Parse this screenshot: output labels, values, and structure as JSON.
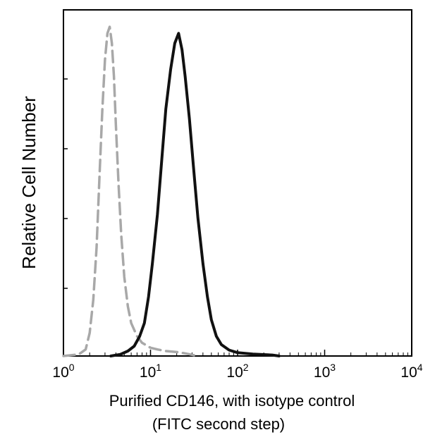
{
  "chart_data": {
    "type": "line",
    "title": "",
    "xlabel": "Purified CD146, with isotype control",
    "xlabel_line2": "(FITC second step)",
    "ylabel": "Relative Cell Number",
    "x_scale": "log",
    "xlim": [
      1,
      10000
    ],
    "ylim": [
      0,
      1
    ],
    "grid": false,
    "legend": "none",
    "x_tick_labels": [
      {
        "base": "10",
        "exp": "0",
        "value": 1
      },
      {
        "base": "10",
        "exp": "1",
        "value": 10
      },
      {
        "base": "10",
        "exp": "2",
        "value": 100
      },
      {
        "base": "10",
        "exp": "3",
        "value": 1000
      },
      {
        "base": "10",
        "exp": "4",
        "value": 10000
      }
    ],
    "y_ticks": [
      0,
      0.2,
      0.4,
      0.6,
      0.8,
      1.0
    ],
    "series": [
      {
        "color": "#a8a8a8",
        "style": "dashed",
        "x": [
          1.0,
          1.5,
          1.8,
          2.0,
          2.2,
          2.4,
          2.6,
          2.8,
          3.0,
          3.2,
          3.4,
          3.6,
          3.8,
          4.0,
          4.3,
          4.6,
          5.0,
          5.5,
          6.0,
          7.0,
          8.0,
          10,
          12,
          15,
          20,
          25,
          35
        ],
        "y": [
          0.0,
          0.005,
          0.02,
          0.07,
          0.17,
          0.33,
          0.55,
          0.75,
          0.9,
          0.98,
          1.0,
          0.95,
          0.85,
          0.7,
          0.52,
          0.37,
          0.24,
          0.15,
          0.1,
          0.06,
          0.04,
          0.025,
          0.02,
          0.015,
          0.012,
          0.008,
          0.0
        ]
      },
      {
        "color": "#111111",
        "style": "solid",
        "x": [
          3.5,
          4.5,
          5.5,
          6.5,
          7.5,
          8.5,
          9.5,
          10.5,
          12,
          13.5,
          15,
          17,
          19,
          21,
          23,
          25,
          28,
          31,
          35,
          40,
          45,
          50,
          57,
          65,
          80,
          100,
          150,
          250,
          300
        ],
        "y": [
          0.0,
          0.005,
          0.015,
          0.03,
          0.06,
          0.1,
          0.18,
          0.28,
          0.43,
          0.6,
          0.75,
          0.87,
          0.95,
          0.98,
          0.93,
          0.85,
          0.72,
          0.58,
          0.42,
          0.28,
          0.18,
          0.11,
          0.06,
          0.035,
          0.018,
          0.01,
          0.006,
          0.003,
          0.0
        ]
      }
    ]
  }
}
